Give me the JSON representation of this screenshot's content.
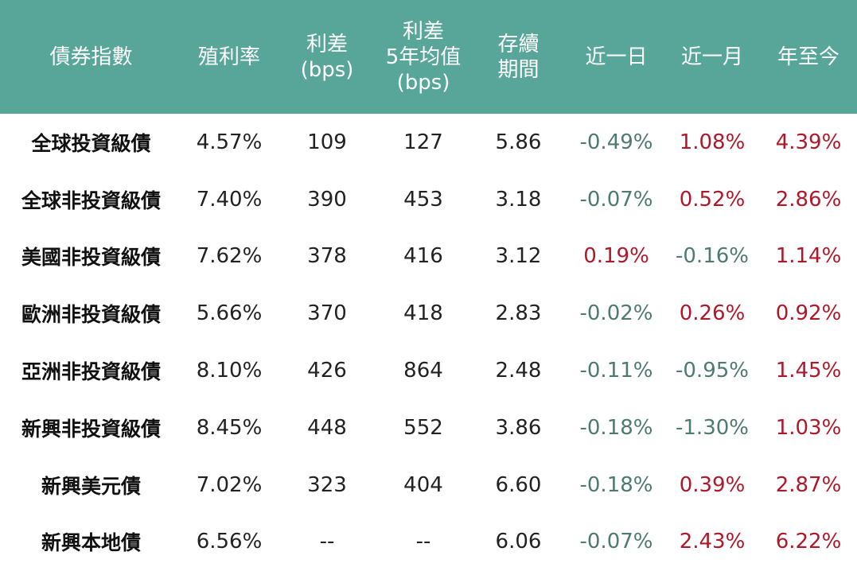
{
  "colors": {
    "header_bg": "#58a69a",
    "header_text": "#ffffff",
    "positive": "#b0182a",
    "negative": "#4f7a72"
  },
  "header": {
    "name": [
      "債券指數"
    ],
    "yield": [
      "殖利率"
    ],
    "spread": [
      "利差",
      "(bps)"
    ],
    "spread_avg": [
      "利差",
      "5年均值",
      "(bps)"
    ],
    "duration": [
      "存續",
      "期間"
    ],
    "d1": [
      "近一日"
    ],
    "m1": [
      "近一月"
    ],
    "ytd": [
      "年至今"
    ]
  },
  "rows": [
    {
      "name": "全球投資級債",
      "yield": "4.57%",
      "spread": "109",
      "spread_avg": "127",
      "duration": "5.86",
      "d1": "-0.49%",
      "m1": "1.08%",
      "ytd": "4.39%"
    },
    {
      "name": "全球非投資級債",
      "yield": "7.40%",
      "spread": "390",
      "spread_avg": "453",
      "duration": "3.18",
      "d1": "-0.07%",
      "m1": "0.52%",
      "ytd": "2.86%"
    },
    {
      "name": "美國非投資級債",
      "yield": "7.62%",
      "spread": "378",
      "spread_avg": "416",
      "duration": "3.12",
      "d1": "0.19%",
      "m1": "-0.16%",
      "ytd": "1.14%"
    },
    {
      "name": "歐洲非投資級債",
      "yield": "5.66%",
      "spread": "370",
      "spread_avg": "418",
      "duration": "2.83",
      "d1": "-0.02%",
      "m1": "0.26%",
      "ytd": "0.92%"
    },
    {
      "name": "亞洲非投資級債",
      "yield": "8.10%",
      "spread": "426",
      "spread_avg": "864",
      "duration": "2.48",
      "d1": "-0.11%",
      "m1": "-0.95%",
      "ytd": "1.45%"
    },
    {
      "name": "新興非投資級債",
      "yield": "8.45%",
      "spread": "448",
      "spread_avg": "552",
      "duration": "3.86",
      "d1": "-0.18%",
      "m1": "-1.30%",
      "ytd": "1.03%"
    },
    {
      "name": "新興美元債",
      "yield": "7.02%",
      "spread": "323",
      "spread_avg": "404",
      "duration": "6.60",
      "d1": "-0.18%",
      "m1": "0.39%",
      "ytd": "2.87%"
    },
    {
      "name": "新興本地債",
      "yield": "6.56%",
      "spread": "--",
      "spread_avg": "--",
      "duration": "6.06",
      "d1": "-0.07%",
      "m1": "2.43%",
      "ytd": "6.22%"
    }
  ]
}
